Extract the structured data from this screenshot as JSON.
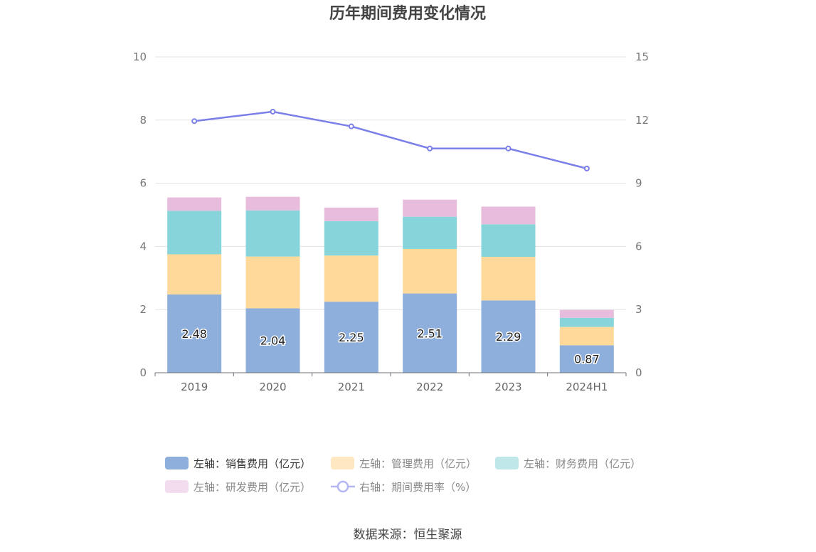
{
  "chart_data": {
    "type": "bar",
    "title": "历年期间费用变化情况",
    "categories": [
      "2019",
      "2020",
      "2021",
      "2022",
      "2023",
      "2024H1"
    ],
    "stacked": true,
    "y_left": {
      "min": 0,
      "max": 10,
      "ticks": [
        "0",
        "2",
        "4",
        "6",
        "8",
        "10"
      ]
    },
    "y_right": {
      "min": 0,
      "max": 15,
      "ticks": [
        "0",
        "3",
        "6",
        "9",
        "12",
        "15"
      ]
    },
    "series": [
      {
        "name": "左轴：销售费用（亿元）",
        "type": "bar",
        "axis": "left",
        "color": "#8eaedb",
        "values": [
          2.48,
          2.04,
          2.25,
          2.51,
          2.29,
          0.87
        ],
        "labels": [
          "2.48",
          "2.04",
          "2.25",
          "2.51",
          "2.29",
          "0.87"
        ]
      },
      {
        "name": "左轴：管理费用（亿元）",
        "type": "bar",
        "axis": "left",
        "color": "#ffd999",
        "values": [
          1.27,
          1.64,
          1.46,
          1.41,
          1.38,
          0.58
        ]
      },
      {
        "name": "左轴：财务费用（亿元）",
        "type": "bar",
        "axis": "left",
        "color": "#87d5da",
        "values": [
          1.38,
          1.46,
          1.09,
          1.02,
          1.03,
          0.29
        ]
      },
      {
        "name": "左轴：研发费用（亿元）",
        "type": "bar",
        "axis": "left",
        "color": "#e8bcdc",
        "values": [
          0.42,
          0.43,
          0.43,
          0.54,
          0.56,
          0.25
        ]
      },
      {
        "name": "右轴：期间费用率（%）",
        "type": "line",
        "axis": "right",
        "color": "#7b7fe8",
        "values": [
          11.95,
          12.4,
          11.7,
          10.65,
          10.65,
          9.7
        ]
      }
    ],
    "legend_position": "bottom",
    "grid": true
  },
  "legend_colors": [
    "#8eaedb",
    "#ffe7c2",
    "#bfe7ea",
    "#f2dcee",
    "#b3b6f0"
  ],
  "source": "数据来源：恒生聚源"
}
